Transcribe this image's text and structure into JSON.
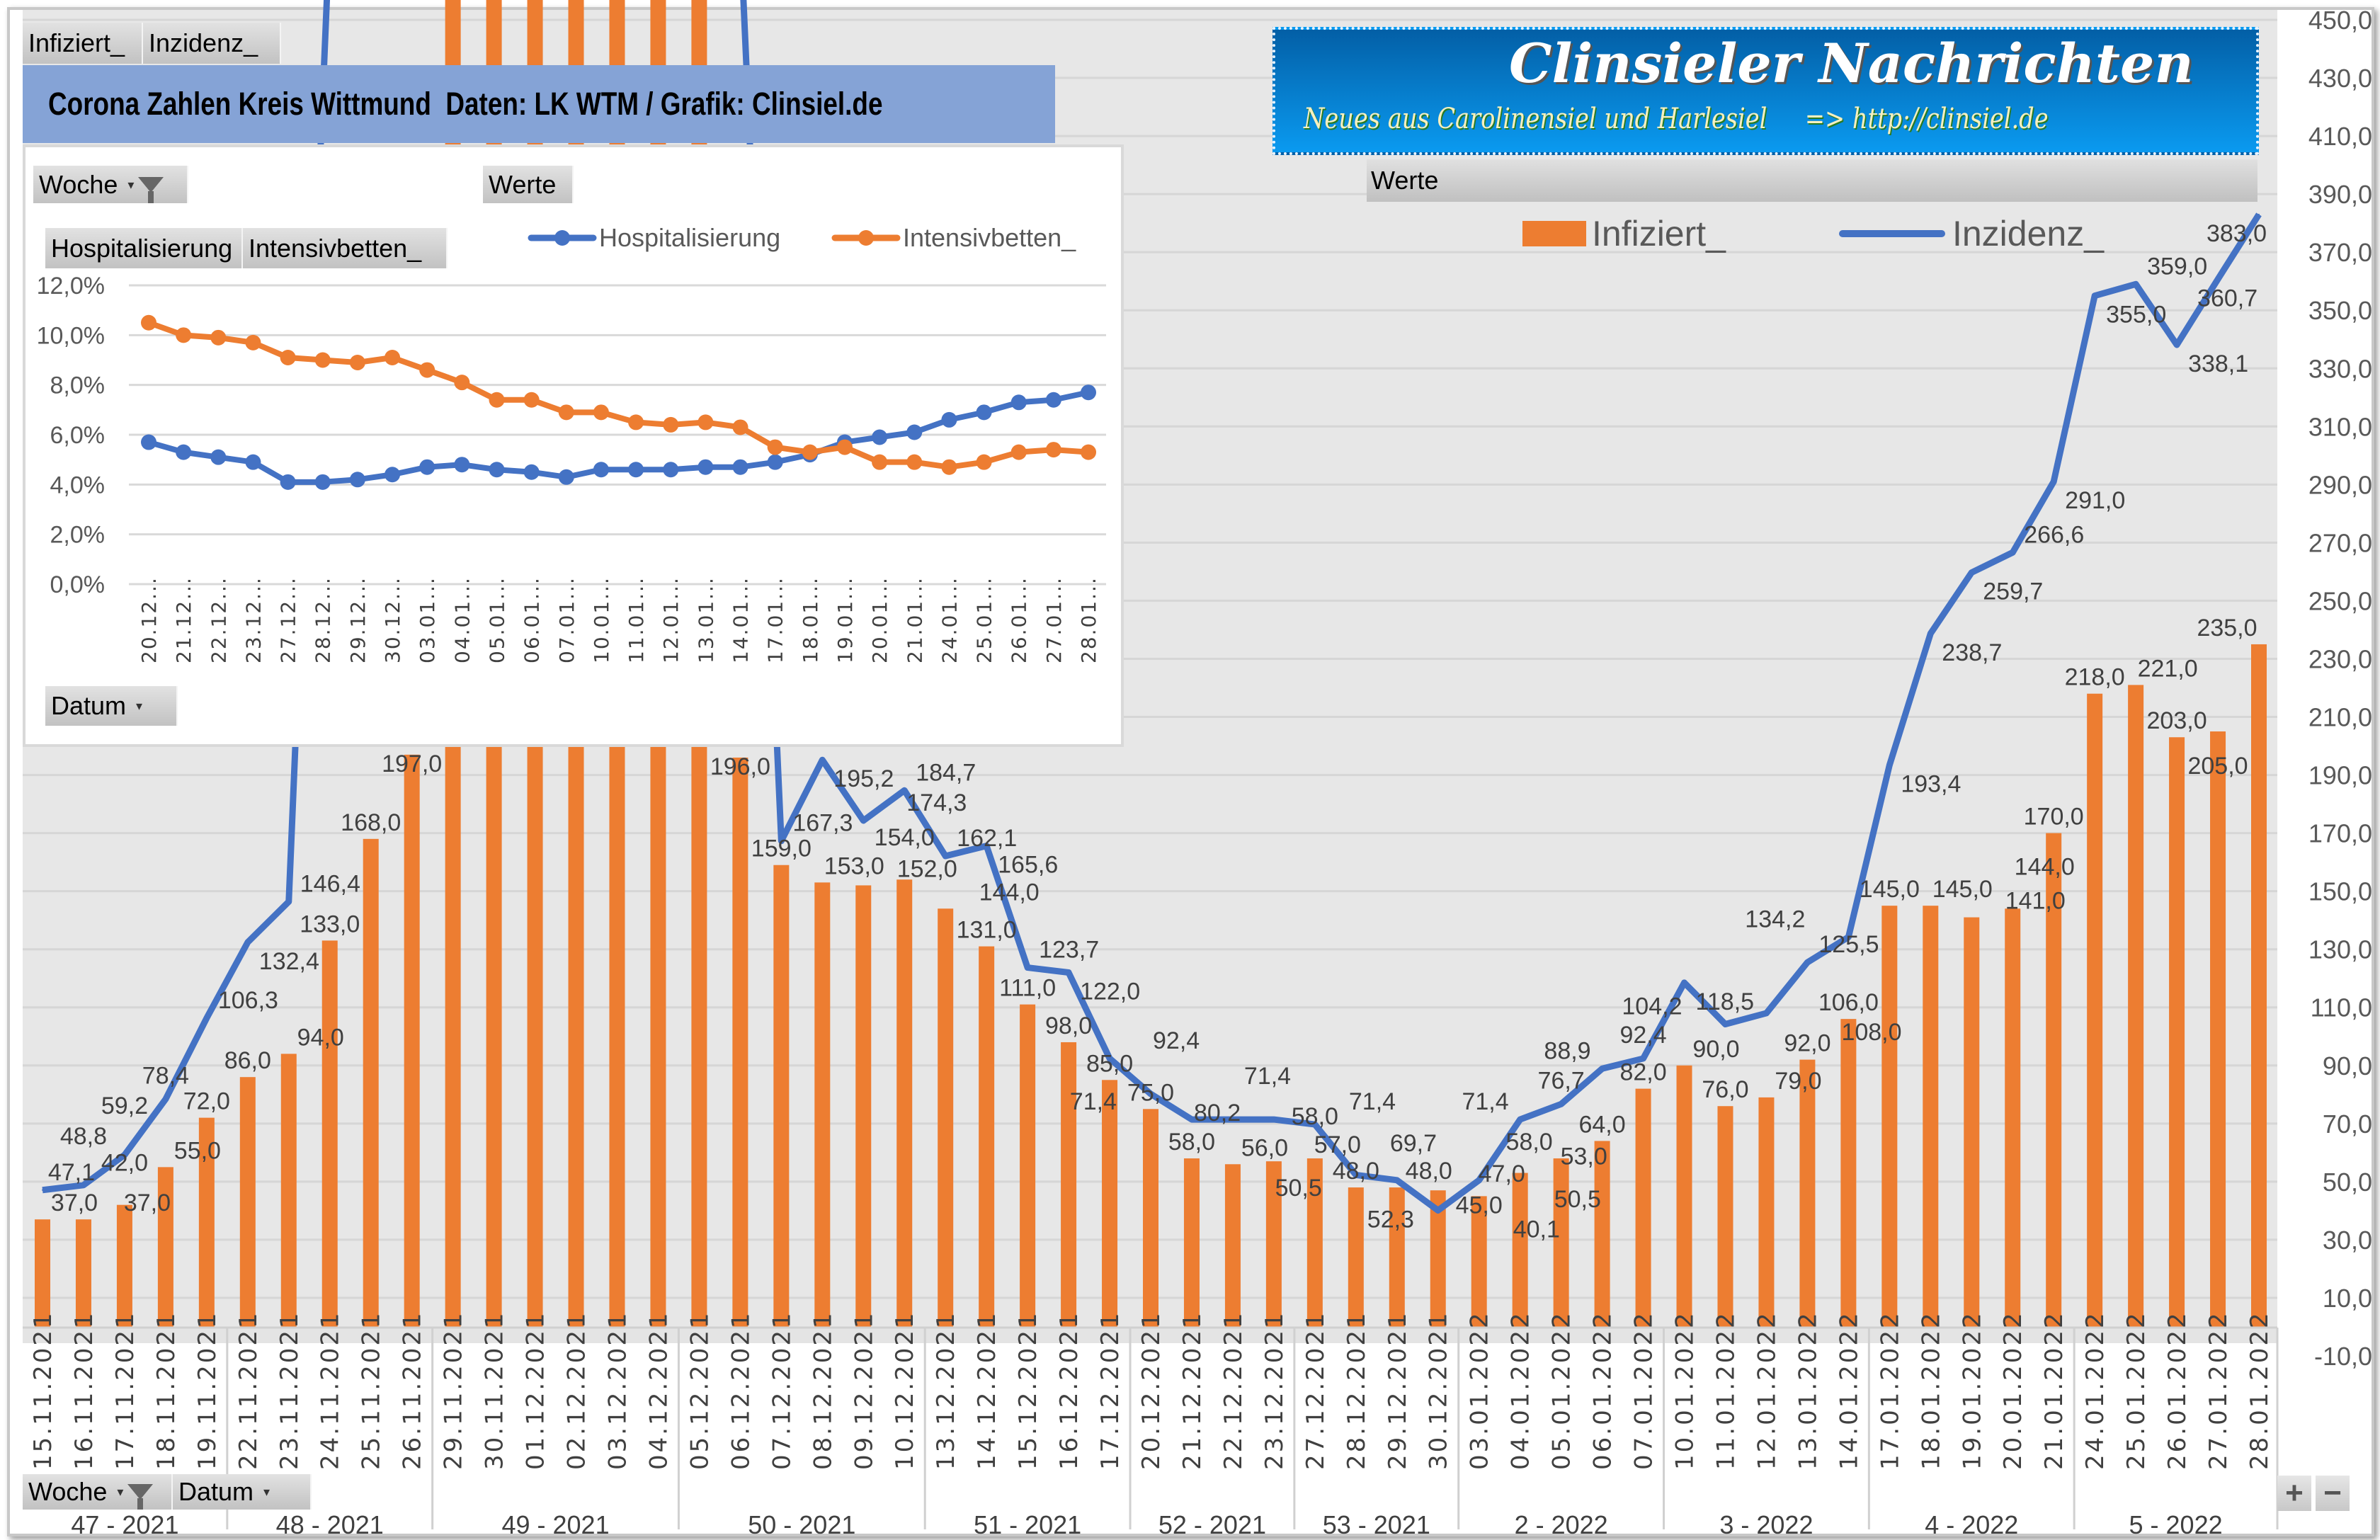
{
  "pivot_buttons": {
    "values": [
      "Infiziert_",
      "Inzidenz_"
    ],
    "axis": [
      "Woche",
      "Datum"
    ]
  },
  "title": "Corona Zahlen Kreis Wittmund  Daten: LK WTM / Grafik: Clinsiel.de",
  "logo": {
    "line1": "Clinsieler Nachrichten",
    "line2": "Neues aus Carolinensiel und Harlesiel     => http://clinsiel.de"
  },
  "werte_label": "Werte",
  "zoom_buttons": {
    "plus": "+",
    "minus": "−"
  },
  "colors": {
    "infiziert": "#ed7d31",
    "inzidenz": "#4472c4",
    "hospitalisierung": "#4472c4",
    "intensivbetten": "#ed7d31",
    "plot_bg": "#e7e7e7",
    "title_bg": "#85a3d6"
  },
  "icons": {
    "filter": "funnel-icon",
    "dropdown": "dropdown-arrow-icon"
  },
  "chart_data": [
    {
      "type": "bar+line",
      "legend_placement": "top",
      "grid": true,
      "ylim": [
        -10,
        450
      ],
      "y_ticks": [
        -10,
        10,
        30,
        50,
        70,
        90,
        110,
        130,
        150,
        170,
        190,
        210,
        230,
        250,
        270,
        290,
        310,
        330,
        350,
        370,
        390,
        410,
        430,
        450
      ],
      "weeks": [
        {
          "label": "47 - 2021",
          "count": 5
        },
        {
          "label": "48 - 2021",
          "count": 5
        },
        {
          "label": "49 - 2021",
          "count": 6
        },
        {
          "label": "50 - 2021",
          "count": 6
        },
        {
          "label": "51 - 2021",
          "count": 5
        },
        {
          "label": "52 - 2021",
          "count": 4
        },
        {
          "label": "53 - 2021",
          "count": 4
        },
        {
          "label": "2 - 2022",
          "count": 5
        },
        {
          "label": "3 - 2022",
          "count": 5
        },
        {
          "label": "4 - 2022",
          "count": 5
        },
        {
          "label": "5 - 2022",
          "count": 5
        }
      ],
      "categories": [
        "15.11.2021",
        "16.11.2021",
        "17.11.2021",
        "18.11.2021",
        "19.11.2021",
        "22.11.2021",
        "23.11.2021",
        "24.11.2021",
        "25.11.2021",
        "26.11.2021",
        "29.11.2021",
        "30.11.2021",
        "01.12.2021",
        "02.12.2021",
        "03.12.2021",
        "04.12.2021",
        "05.12.2021",
        "06.12.2021",
        "07.12.2021",
        "08.12.2021",
        "09.12.2021",
        "10.12.2021",
        "13.12.2021",
        "14.12.2021",
        "15.12.2021",
        "16.12.2021",
        "17.12.2021",
        "20.12.2021",
        "21.12.2021",
        "22.12.2021",
        "23.12.2021",
        "27.12.2021",
        "28.12.2021",
        "29.12.2021",
        "30.12.2021",
        "03.01.2022",
        "04.01.2022",
        "05.01.2022",
        "06.01.2022",
        "07.01.2022",
        "10.01.2022",
        "11.01.2022",
        "12.01.2022",
        "13.01.2022",
        "14.01.2022",
        "17.01.2022",
        "18.01.2022",
        "19.01.2022",
        "20.01.2022",
        "21.01.2022",
        "24.01.2022",
        "25.01.2022",
        "26.01.2022",
        "27.01.2022",
        "28.01.2022"
      ],
      "series": [
        {
          "name": "Infiziert_",
          "type": "bar",
          "values": [
            37.0,
            37.0,
            42.0,
            55.0,
            72.0,
            86.0,
            94.0,
            133.0,
            168.0,
            197.0,
            null,
            null,
            null,
            null,
            null,
            null,
            null,
            196.0,
            159.0,
            153.0,
            152.0,
            154.0,
            144.0,
            131.0,
            111.0,
            98.0,
            85.0,
            75.0,
            58.0,
            56.0,
            57.0,
            58.0,
            48.0,
            48.0,
            47.0,
            45.0,
            53.0,
            58.0,
            64.0,
            82.0,
            90.0,
            76.0,
            79.0,
            92.0,
            106.0,
            145.0,
            145.0,
            141.0,
            144.0,
            170.0,
            218.0,
            221.0,
            203.0,
            205.0,
            235.0
          ]
        },
        {
          "name": "Inzidenz_",
          "type": "line",
          "values": [
            47.1,
            48.8,
            59.2,
            78.4,
            106.3,
            132.4,
            146.4,
            null,
            null,
            null,
            null,
            null,
            null,
            null,
            null,
            null,
            null,
            null,
            167.3,
            195.2,
            174.3,
            184.7,
            162.1,
            165.6,
            123.7,
            122.0,
            92.4,
            80.2,
            71.4,
            71.4,
            71.4,
            69.7,
            52.3,
            50.5,
            40.1,
            50.5,
            71.4,
            76.7,
            88.9,
            92.4,
            118.5,
            104.2,
            108.0,
            125.5,
            134.2,
            193.4,
            238.7,
            259.7,
            266.6,
            291.0,
            355.0,
            359.0,
            338.1,
            360.7,
            383.0
          ]
        }
      ]
    },
    {
      "type": "line",
      "legend_placement": "top",
      "grid": true,
      "ylim": [
        0,
        12
      ],
      "y_ticks": [
        "0,0%",
        "2,0%",
        "4,0%",
        "6,0%",
        "8,0%",
        "10,0%",
        "12,0%"
      ],
      "categories": [
        "20.12...",
        "21.12...",
        "22.12...",
        "23.12...",
        "27.12...",
        "28.12...",
        "29.12...",
        "30.12...",
        "03.01...",
        "04.01...",
        "05.01...",
        "06.01...",
        "07.01...",
        "10.01...",
        "11.01...",
        "12.01...",
        "13.01...",
        "14.01...",
        "17.01...",
        "18.01...",
        "19.01...",
        "20.01...",
        "21.01...",
        "24.01...",
        "25.01...",
        "26.01...",
        "27.01...",
        "28.01..."
      ],
      "series": [
        {
          "name": "Hospitalisierung",
          "values": [
            5.7,
            5.3,
            5.1,
            4.9,
            4.1,
            4.1,
            4.2,
            4.4,
            4.7,
            4.8,
            4.6,
            4.5,
            4.3,
            4.6,
            4.6,
            4.6,
            4.7,
            4.7,
            4.9,
            5.2,
            5.7,
            5.9,
            6.1,
            6.6,
            6.9,
            7.3,
            7.4,
            7.7
          ]
        },
        {
          "name": "Intensivbetten_",
          "values": [
            10.5,
            10.0,
            9.9,
            9.7,
            9.1,
            9.0,
            8.9,
            9.1,
            8.6,
            8.1,
            7.4,
            7.4,
            6.9,
            6.9,
            6.5,
            6.4,
            6.5,
            6.3,
            5.5,
            5.3,
            5.5,
            4.9,
            4.9,
            4.7,
            4.9,
            5.3,
            5.4,
            5.3
          ]
        }
      ],
      "buttons": {
        "filter": "Woche",
        "values": "Werte",
        "fields": [
          "Hospitalisierung",
          "Intensivbetten_"
        ],
        "axis": "Datum"
      }
    }
  ]
}
